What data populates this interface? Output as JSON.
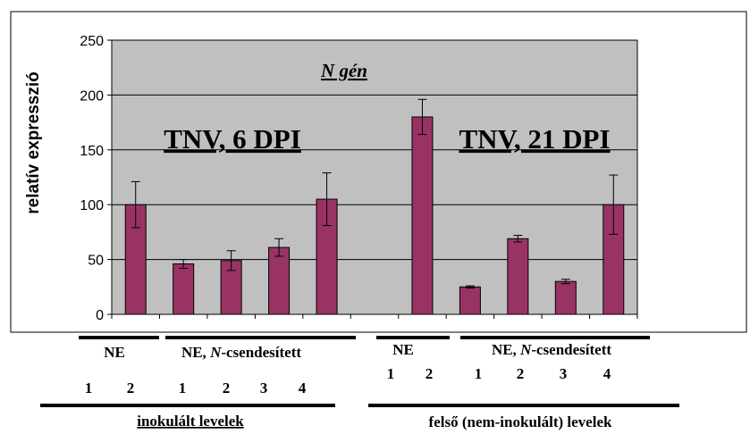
{
  "chart_data": {
    "type": "bar",
    "ylabel": "relatív expresszió",
    "ylim": [
      0,
      250
    ],
    "yticks": [
      "0",
      "50",
      "100",
      "150",
      "200",
      "250"
    ],
    "grid": true,
    "bar_color": "#993366",
    "plot_background": "#c0c0c0",
    "gene_label": "N gén",
    "annotations": [
      "TNV, 6 DPI",
      "TNV, 21 DPI"
    ],
    "values": [
      100,
      46,
      49,
      61,
      105,
      180,
      25,
      69,
      30,
      100
    ],
    "errors": [
      21,
      4,
      9,
      8,
      24,
      16,
      1,
      3,
      2,
      27
    ]
  },
  "labels": {
    "ne": "NE",
    "ne_silenced_prefix": "NE, ",
    "ne_silenced_italic": "N",
    "ne_silenced_suffix": "-csendesített",
    "numbers": [
      "1",
      "2",
      "1",
      "2",
      "3",
      "4"
    ],
    "section_left": "inokulált levelek",
    "section_right": "felső (nem-inokulált) levelek"
  }
}
